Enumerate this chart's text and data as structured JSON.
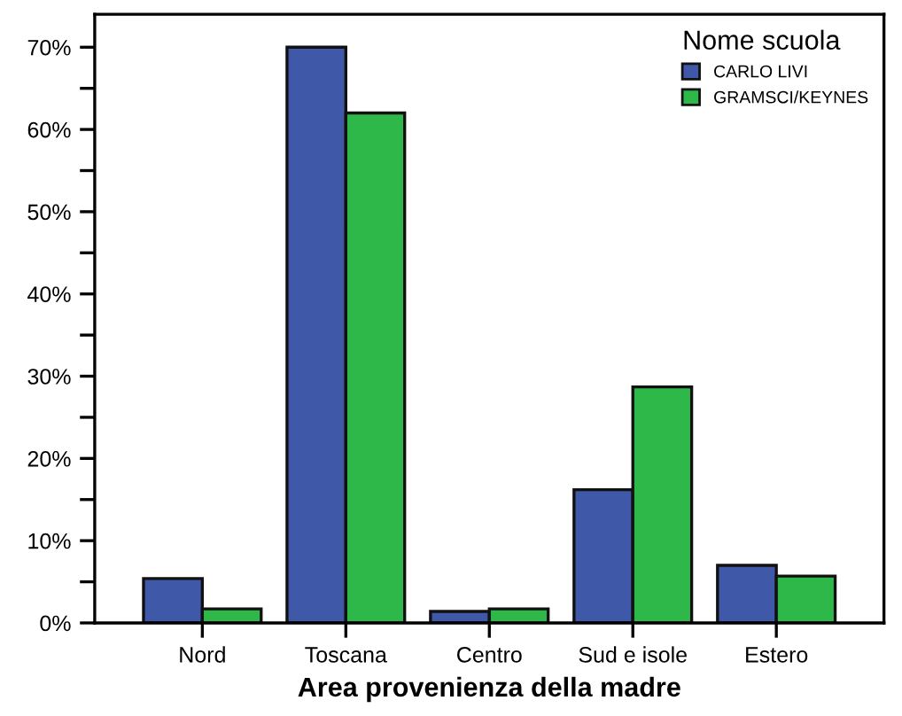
{
  "chart_data": {
    "type": "bar",
    "xlabel": "Area provenienza della madre",
    "legend_title": "Nome scuola",
    "legend": "top right",
    "categories": [
      "Nord",
      "Toscana",
      "Centro",
      "Sud e isole",
      "Estero"
    ],
    "series": [
      {
        "name": "CARLO LIVI",
        "color": "#3f58a8",
        "values": [
          5.4,
          70,
          1.4,
          16.2,
          7.0
        ]
      },
      {
        "name": "GRAMSCI/KEYNES",
        "color": "#2fb84a",
        "values": [
          1.7,
          62,
          1.7,
          28.7,
          5.7
        ]
      }
    ],
    "ylim": [
      0,
      74
    ],
    "yticks": [
      {
        "value": 0,
        "label": "0%"
      },
      {
        "value": 5,
        "label": null
      },
      {
        "value": 10,
        "label": "10%"
      },
      {
        "value": 15,
        "label": null
      },
      {
        "value": 20,
        "label": "20%"
      },
      {
        "value": 25,
        "label": null
      },
      {
        "value": 30,
        "label": "30%"
      },
      {
        "value": 35,
        "label": null
      },
      {
        "value": 40,
        "label": "40%"
      },
      {
        "value": 45,
        "label": null
      },
      {
        "value": 50,
        "label": "50%"
      },
      {
        "value": 55,
        "label": null
      },
      {
        "value": 60,
        "label": "60%"
      },
      {
        "value": 65,
        "label": null
      },
      {
        "value": 70,
        "label": "70%"
      }
    ],
    "grid": false
  }
}
